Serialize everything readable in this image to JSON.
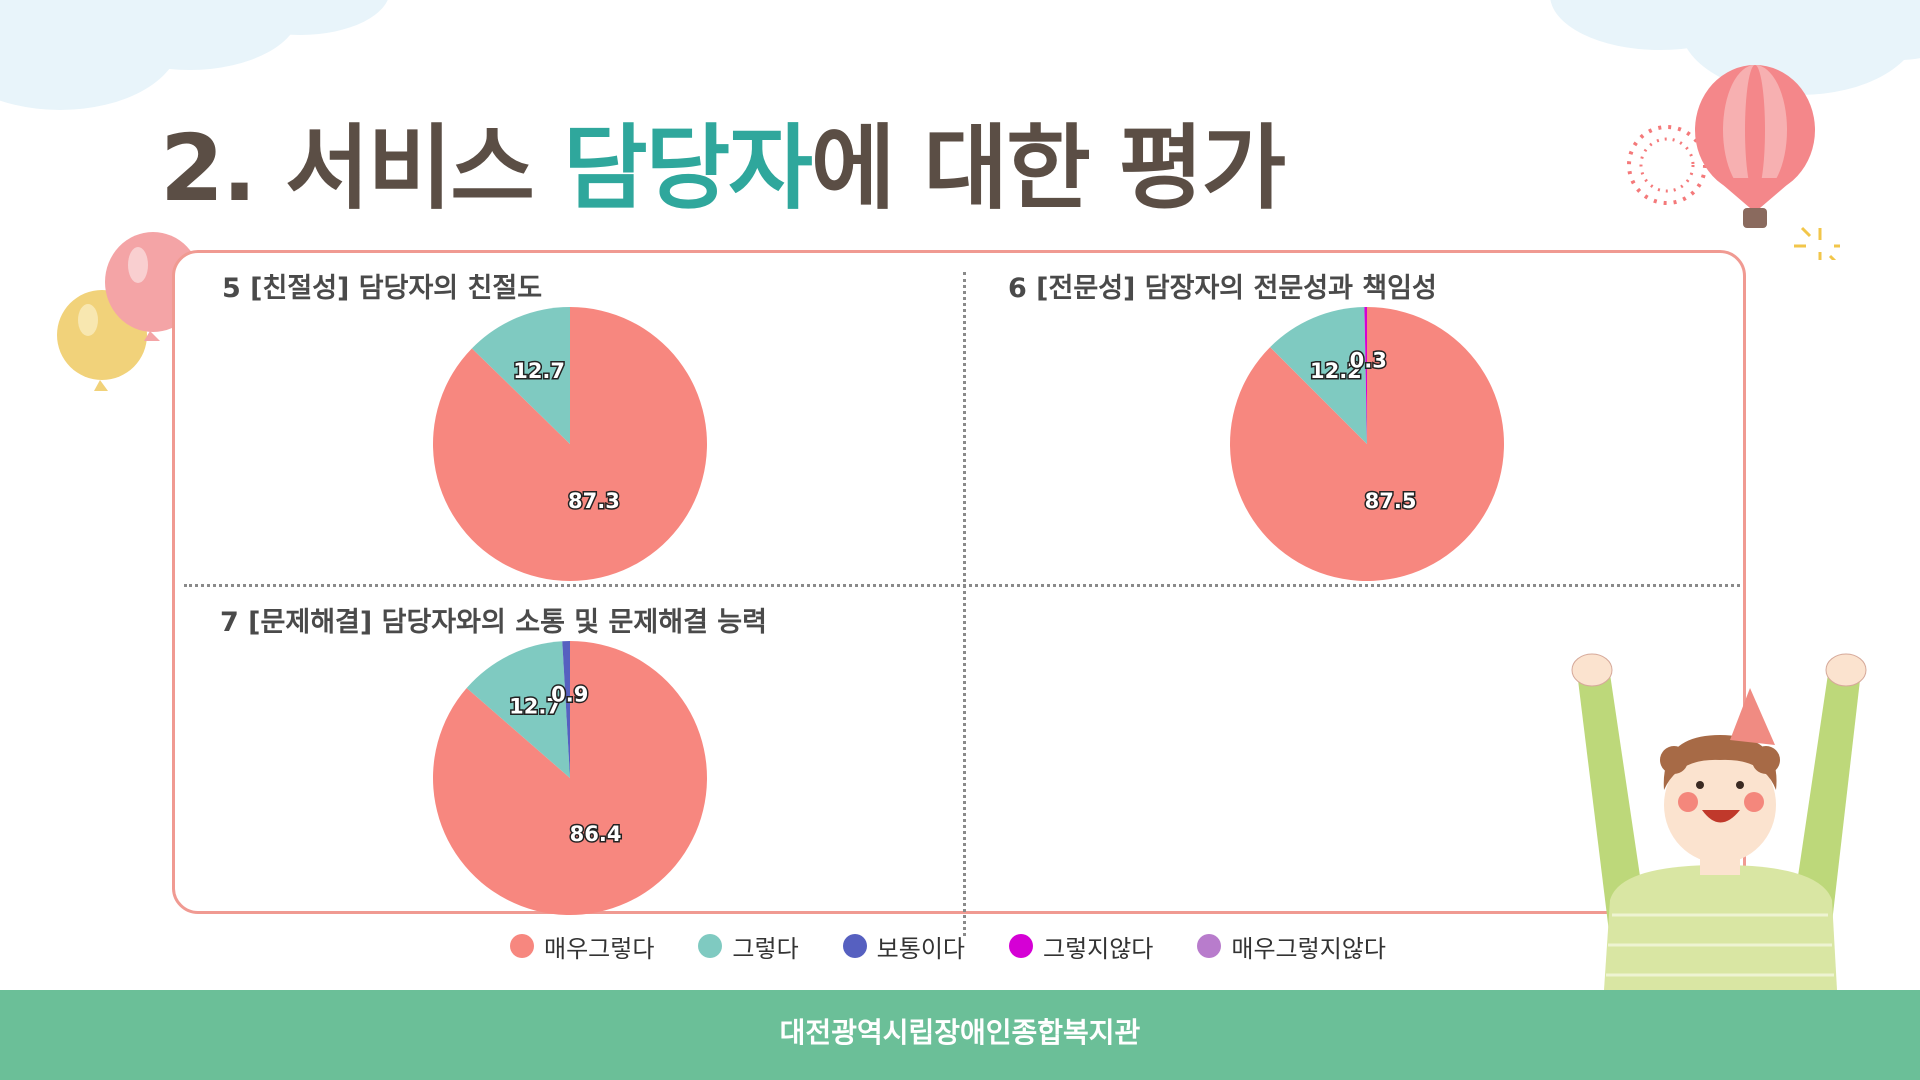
{
  "title": {
    "part1": "2. 서비스 ",
    "accent": "담당자",
    "part2": "에 대한 평가"
  },
  "footer": {
    "text": "대전광역시립장애인종합복지관"
  },
  "colors": {
    "매우그렇다": "#f7877f",
    "그렇다": "#7fcac1",
    "보통이다": "#5660c0",
    "그렇지않다": "#d500d5",
    "매우그렇지않다": "#b87ccc"
  },
  "legend": [
    {
      "label": "매우그렇다",
      "color": "#f7877f"
    },
    {
      "label": "그렇다",
      "color": "#7fcac1"
    },
    {
      "label": "보통이다",
      "color": "#5660c0"
    },
    {
      "label": "그렇지않다",
      "color": "#d500d5"
    },
    {
      "label": "매우그렇지않다",
      "color": "#b87ccc"
    }
  ],
  "chart_data": [
    {
      "type": "pie",
      "title": "5 [친절성] 담당자의 친절도",
      "slices": [
        {
          "name": "매우그렇다",
          "value": 87.3
        },
        {
          "name": "그렇다",
          "value": 12.7
        },
        {
          "name": "보통이다",
          "value": 0
        },
        {
          "name": "그렇지않다",
          "value": 0
        },
        {
          "name": "매우그렇지않다",
          "value": 0
        }
      ],
      "labels": [
        "87.3",
        "12.7"
      ]
    },
    {
      "type": "pie",
      "title": "6 [전문성] 담장자의 전문성과 책임성",
      "slices": [
        {
          "name": "매우그렇다",
          "value": 87.5
        },
        {
          "name": "그렇다",
          "value": 12.2
        },
        {
          "name": "보통이다",
          "value": 0
        },
        {
          "name": "그렇지않다",
          "value": 0.3
        },
        {
          "name": "매우그렇지않다",
          "value": 0
        }
      ],
      "labels": [
        "87.5",
        "12.2",
        "0.3"
      ]
    },
    {
      "type": "pie",
      "title": "7 [문제해결] 담당자와의 소통 및 문제해결 능력",
      "slices": [
        {
          "name": "매우그렇다",
          "value": 86.4
        },
        {
          "name": "그렇다",
          "value": 12.7
        },
        {
          "name": "보통이다",
          "value": 0.9
        },
        {
          "name": "그렇지않다",
          "value": 0
        },
        {
          "name": "매우그렇지않다",
          "value": 0
        }
      ],
      "labels": [
        "86.4",
        "12.7",
        "0.9"
      ]
    }
  ]
}
